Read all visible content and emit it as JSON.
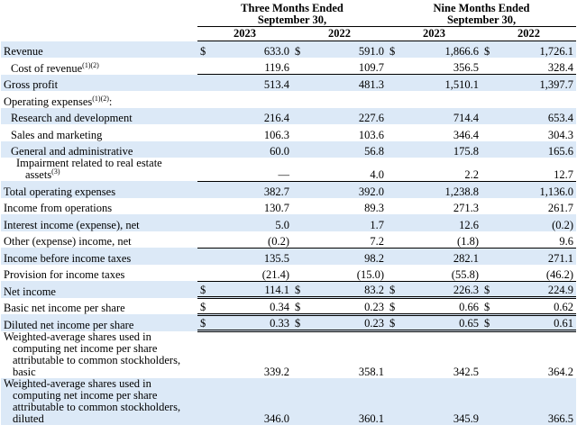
{
  "header": {
    "groups": [
      [
        "Three Months Ended",
        "September 30,"
      ],
      [
        "Nine Months Ended",
        "September 30,"
      ]
    ],
    "years": [
      "2023",
      "2022",
      "2023",
      "2022"
    ]
  },
  "table": {
    "rows": [
      {
        "label": "Revenue",
        "currency": "$",
        "values": [
          "633.0",
          "591.0",
          "1,866.6",
          "1,726.1"
        ]
      },
      {
        "label": "Cost of revenue",
        "note": "(1)(2)",
        "values": [
          "119.6",
          "109.7",
          "356.5",
          "328.4"
        ]
      },
      {
        "label": "Gross profit",
        "values": [
          "513.4",
          "481.3",
          "1,510.1",
          "1,397.7"
        ]
      },
      {
        "label": "Operating expenses",
        "note": "(1)(2)",
        "label_end": ":",
        "values": []
      },
      {
        "label": "Research and development",
        "values": [
          "216.4",
          "227.6",
          "714.4",
          "653.4"
        ]
      },
      {
        "label": "Sales and marketing",
        "values": [
          "106.3",
          "103.6",
          "346.4",
          "304.3"
        ]
      },
      {
        "label": "General and administrative",
        "values": [
          "60.0",
          "56.8",
          "175.8",
          "165.6"
        ]
      },
      {
        "label": "Impairment related to real estate assets",
        "note": "(3)",
        "values": [
          "—",
          "4.0",
          "2.2",
          "12.7"
        ]
      },
      {
        "label": "Total operating expenses",
        "values": [
          "382.7",
          "392.0",
          "1,238.8",
          "1,136.0"
        ]
      },
      {
        "label": "Income from operations",
        "values": [
          "130.7",
          "89.3",
          "271.3",
          "261.7"
        ]
      },
      {
        "label": "Interest income (expense), net",
        "values": [
          "5.0",
          "1.7",
          "12.6",
          "(0.2)"
        ]
      },
      {
        "label": "Other (expense) income, net",
        "values": [
          "(0.2)",
          "7.2",
          "(1.8)",
          "9.6"
        ]
      },
      {
        "label": "Income before income taxes",
        "values": [
          "135.5",
          "98.2",
          "282.1",
          "271.1"
        ]
      },
      {
        "label": "Provision for income taxes",
        "values": [
          "(21.4)",
          "(15.0)",
          "(55.8)",
          "(46.2)"
        ]
      },
      {
        "label": "Net income",
        "currency": "$",
        "values": [
          "114.1",
          "83.2",
          "226.3",
          "224.9"
        ]
      },
      {
        "label": "Basic net income per share",
        "currency": "$",
        "values": [
          "0.34",
          "0.23",
          "0.66",
          "0.62"
        ]
      },
      {
        "label": "Diluted net income per share",
        "currency": "$",
        "values": [
          "0.33",
          "0.23",
          "0.65",
          "0.61"
        ]
      },
      {
        "label": "Weighted-average shares used in computing net income per share attributable to common stockholders, basic",
        "values": [
          "339.2",
          "358.1",
          "342.5",
          "364.2"
        ]
      },
      {
        "label": "Weighted-average shares used in computing net income per share attributable to common stockholders, diluted",
        "values": [
          "346.0",
          "360.1",
          "345.9",
          "366.5"
        ]
      }
    ]
  }
}
